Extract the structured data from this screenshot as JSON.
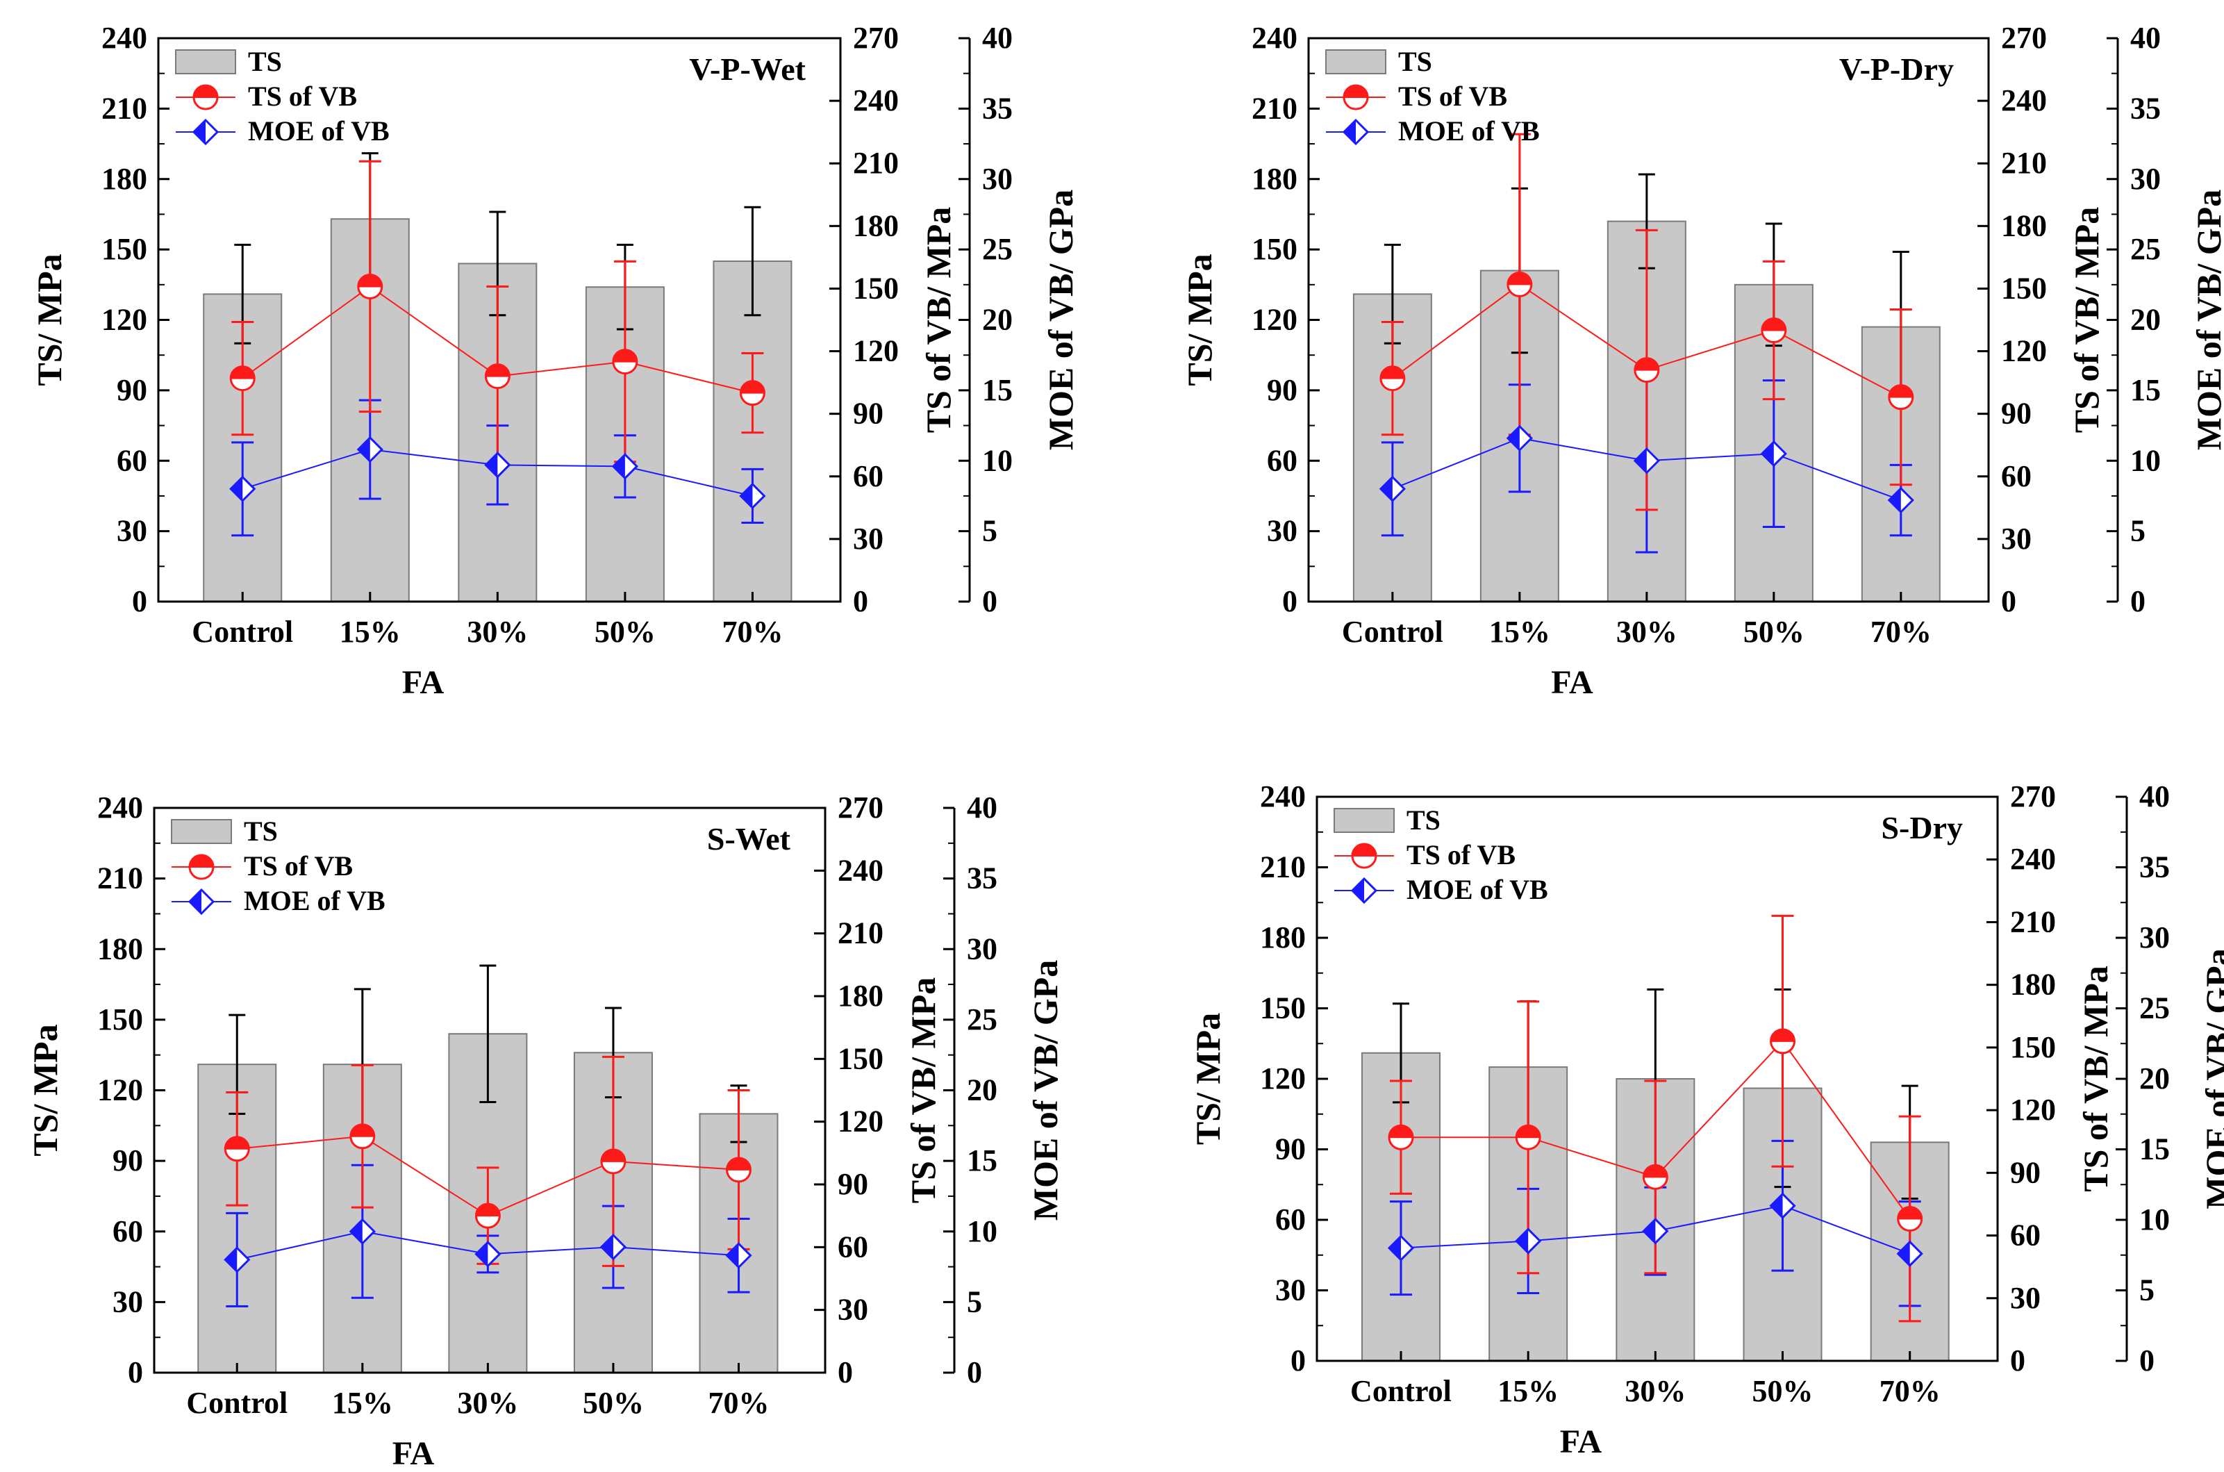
{
  "colors": {
    "bar_fill": "#c8c8c8",
    "bar_edge": "#7a7a7a",
    "ts_bar_error": "#000000",
    "ts_vb": "#ff1a1a",
    "moe_vb": "#1a1aff",
    "axis": "#000000"
  },
  "chart_data": [
    {
      "type": "bar",
      "title": "V-P-Wet",
      "categories": [
        "Control",
        "15%",
        "30%",
        "50%",
        "70%"
      ],
      "xlabel": "FA",
      "ylabel": "TS/ MPa",
      "ylabel2": "TS of VB/ MPa",
      "ylabel3": "MOE of VB/ GPa",
      "ylim": [
        0,
        240
      ],
      "yticks": [
        0,
        30,
        60,
        90,
        120,
        150,
        180,
        210,
        240
      ],
      "y2lim": [
        0,
        270
      ],
      "y2ticks": [
        0,
        30,
        60,
        90,
        120,
        150,
        180,
        210,
        240,
        270
      ],
      "y3lim": [
        0,
        40
      ],
      "y3ticks": [
        0,
        5,
        10,
        15,
        20,
        25,
        30,
        35,
        40
      ],
      "legend": [
        "TS",
        "TS of VB",
        "MOE of VB"
      ],
      "series": [
        {
          "name": "TS",
          "axis": "y",
          "values": [
            131,
            163,
            144,
            134,
            145
          ],
          "errors": [
            21,
            28,
            22,
            18,
            23
          ]
        },
        {
          "name": "TS of VB",
          "axis": "y2",
          "values": [
            107,
            151,
            108,
            115,
            100
          ],
          "errors": [
            27,
            60,
            43,
            48,
            19
          ]
        },
        {
          "name": "MOE of VB",
          "axis": "y3",
          "values": [
            8.0,
            10.8,
            9.7,
            9.6,
            7.5
          ],
          "errors": [
            3.3,
            3.5,
            2.8,
            2.2,
            1.9
          ]
        }
      ]
    },
    {
      "type": "bar",
      "title": "V-P-Dry",
      "categories": [
        "Control",
        "15%",
        "30%",
        "50%",
        "70%"
      ],
      "xlabel": "FA",
      "ylabel": "TS/ MPa",
      "ylabel2": "TS of VB/ MPa",
      "ylabel3": "MOE of VB/ GPa",
      "ylim": [
        0,
        240
      ],
      "yticks": [
        0,
        30,
        60,
        90,
        120,
        150,
        180,
        210,
        240
      ],
      "y2lim": [
        0,
        270
      ],
      "y2ticks": [
        0,
        30,
        60,
        90,
        120,
        150,
        180,
        210,
        240,
        270
      ],
      "y3lim": [
        0,
        40
      ],
      "y3ticks": [
        0,
        5,
        10,
        15,
        20,
        25,
        30,
        35,
        40
      ],
      "legend": [
        "TS",
        "TS of VB",
        "MOE of VB"
      ],
      "series": [
        {
          "name": "TS",
          "axis": "y",
          "values": [
            131,
            141,
            162,
            135,
            117
          ],
          "errors": [
            21,
            35,
            20,
            26,
            32
          ]
        },
        {
          "name": "TS of VB",
          "axis": "y2",
          "values": [
            107,
            152,
            111,
            130,
            98
          ],
          "errors": [
            27,
            72,
            67,
            33,
            42
          ]
        },
        {
          "name": "MOE of VB",
          "axis": "y3",
          "values": [
            8.0,
            11.6,
            10.0,
            10.5,
            7.2
          ],
          "errors": [
            3.3,
            3.8,
            6.5,
            5.2,
            2.5
          ]
        }
      ]
    },
    {
      "type": "bar",
      "title": "S-Wet",
      "categories": [
        "Control",
        "15%",
        "30%",
        "50%",
        "70%"
      ],
      "xlabel": "FA",
      "ylabel": "TS/ MPa",
      "ylabel2": "TS of VB/ MPa",
      "ylabel3": "MOE of VB/ GPa",
      "ylim": [
        0,
        240
      ],
      "yticks": [
        0,
        30,
        60,
        90,
        120,
        150,
        180,
        210,
        240
      ],
      "y2lim": [
        0,
        270
      ],
      "y2ticks": [
        0,
        30,
        60,
        90,
        120,
        150,
        180,
        210,
        240,
        270
      ],
      "y3lim": [
        0,
        40
      ],
      "y3ticks": [
        0,
        5,
        10,
        15,
        20,
        25,
        30,
        35,
        40
      ],
      "legend": [
        "TS",
        "TS of VB",
        "MOE of VB"
      ],
      "series": [
        {
          "name": "TS",
          "axis": "y",
          "values": [
            131,
            131,
            144,
            136,
            110
          ],
          "errors": [
            21,
            32,
            29,
            19,
            12
          ]
        },
        {
          "name": "TS of VB",
          "axis": "y2",
          "values": [
            107,
            113,
            75,
            101,
            97
          ],
          "errors": [
            27,
            34,
            23,
            50,
            38
          ]
        },
        {
          "name": "MOE of VB",
          "axis": "y3",
          "values": [
            8.0,
            10.0,
            8.4,
            8.9,
            8.3
          ],
          "errors": [
            3.3,
            4.7,
            1.3,
            2.9,
            2.6
          ]
        }
      ]
    },
    {
      "type": "bar",
      "title": "S-Dry",
      "categories": [
        "Control",
        "15%",
        "30%",
        "50%",
        "70%"
      ],
      "xlabel": "FA",
      "ylabel": "TS/ MPa",
      "ylabel2": "TS of VB/ MPa",
      "ylabel3": "MOE of VB/ GPa",
      "ylim": [
        0,
        240
      ],
      "yticks": [
        0,
        30,
        60,
        90,
        120,
        150,
        180,
        210,
        240
      ],
      "y2lim": [
        0,
        270
      ],
      "y2ticks": [
        0,
        30,
        60,
        90,
        120,
        150,
        180,
        210,
        240,
        270
      ],
      "y3lim": [
        0,
        40
      ],
      "y3ticks": [
        0,
        5,
        10,
        15,
        20,
        25,
        30,
        35,
        40
      ],
      "legend": [
        "TS",
        "TS of VB",
        "MOE of VB"
      ],
      "series": [
        {
          "name": "TS",
          "axis": "y",
          "values": [
            131,
            125,
            120,
            116,
            93
          ],
          "errors": [
            21,
            28,
            38,
            42,
            24
          ]
        },
        {
          "name": "TS of VB",
          "axis": "y2",
          "values": [
            107,
            107,
            88,
            153,
            68
          ],
          "errors": [
            27,
            65,
            46,
            60,
            49
          ]
        },
        {
          "name": "MOE of VB",
          "axis": "y3",
          "values": [
            8.0,
            8.5,
            9.2,
            11.0,
            7.6
          ],
          "errors": [
            3.3,
            3.7,
            3.1,
            4.6,
            3.7
          ]
        }
      ]
    }
  ]
}
